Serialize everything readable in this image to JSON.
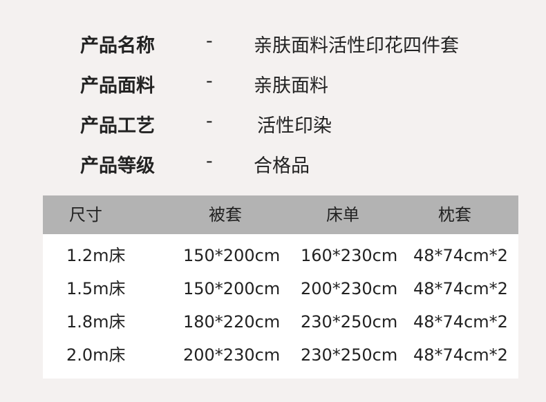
{
  "specs": [
    {
      "label": "产品名称",
      "sep": "-",
      "value": "亲肤面料活性印花四件套"
    },
    {
      "label": "产品面料",
      "sep": "-",
      "value": "亲肤面料"
    },
    {
      "label": "产品工艺",
      "sep": "-",
      "value": "活性印染"
    },
    {
      "label": "产品等级",
      "sep": "-",
      "value": "合格品"
    }
  ],
  "table": {
    "headers": [
      "尺寸",
      "被套",
      "床单",
      "枕套"
    ],
    "rows": [
      [
        "1.2m床",
        "150*200cm",
        "160*230cm",
        "48*74cm*2"
      ],
      [
        "1.5m床",
        "150*200cm",
        "200*230cm",
        "48*74cm*2"
      ],
      [
        "1.8m床",
        "180*220cm",
        "230*250cm",
        "48*74cm*2"
      ],
      [
        "2.0m床",
        "200*230cm",
        "230*250cm",
        "48*74cm*2"
      ]
    ]
  },
  "colors": {
    "background": "#f4f1f0",
    "header": "#b3b3b3"
  }
}
